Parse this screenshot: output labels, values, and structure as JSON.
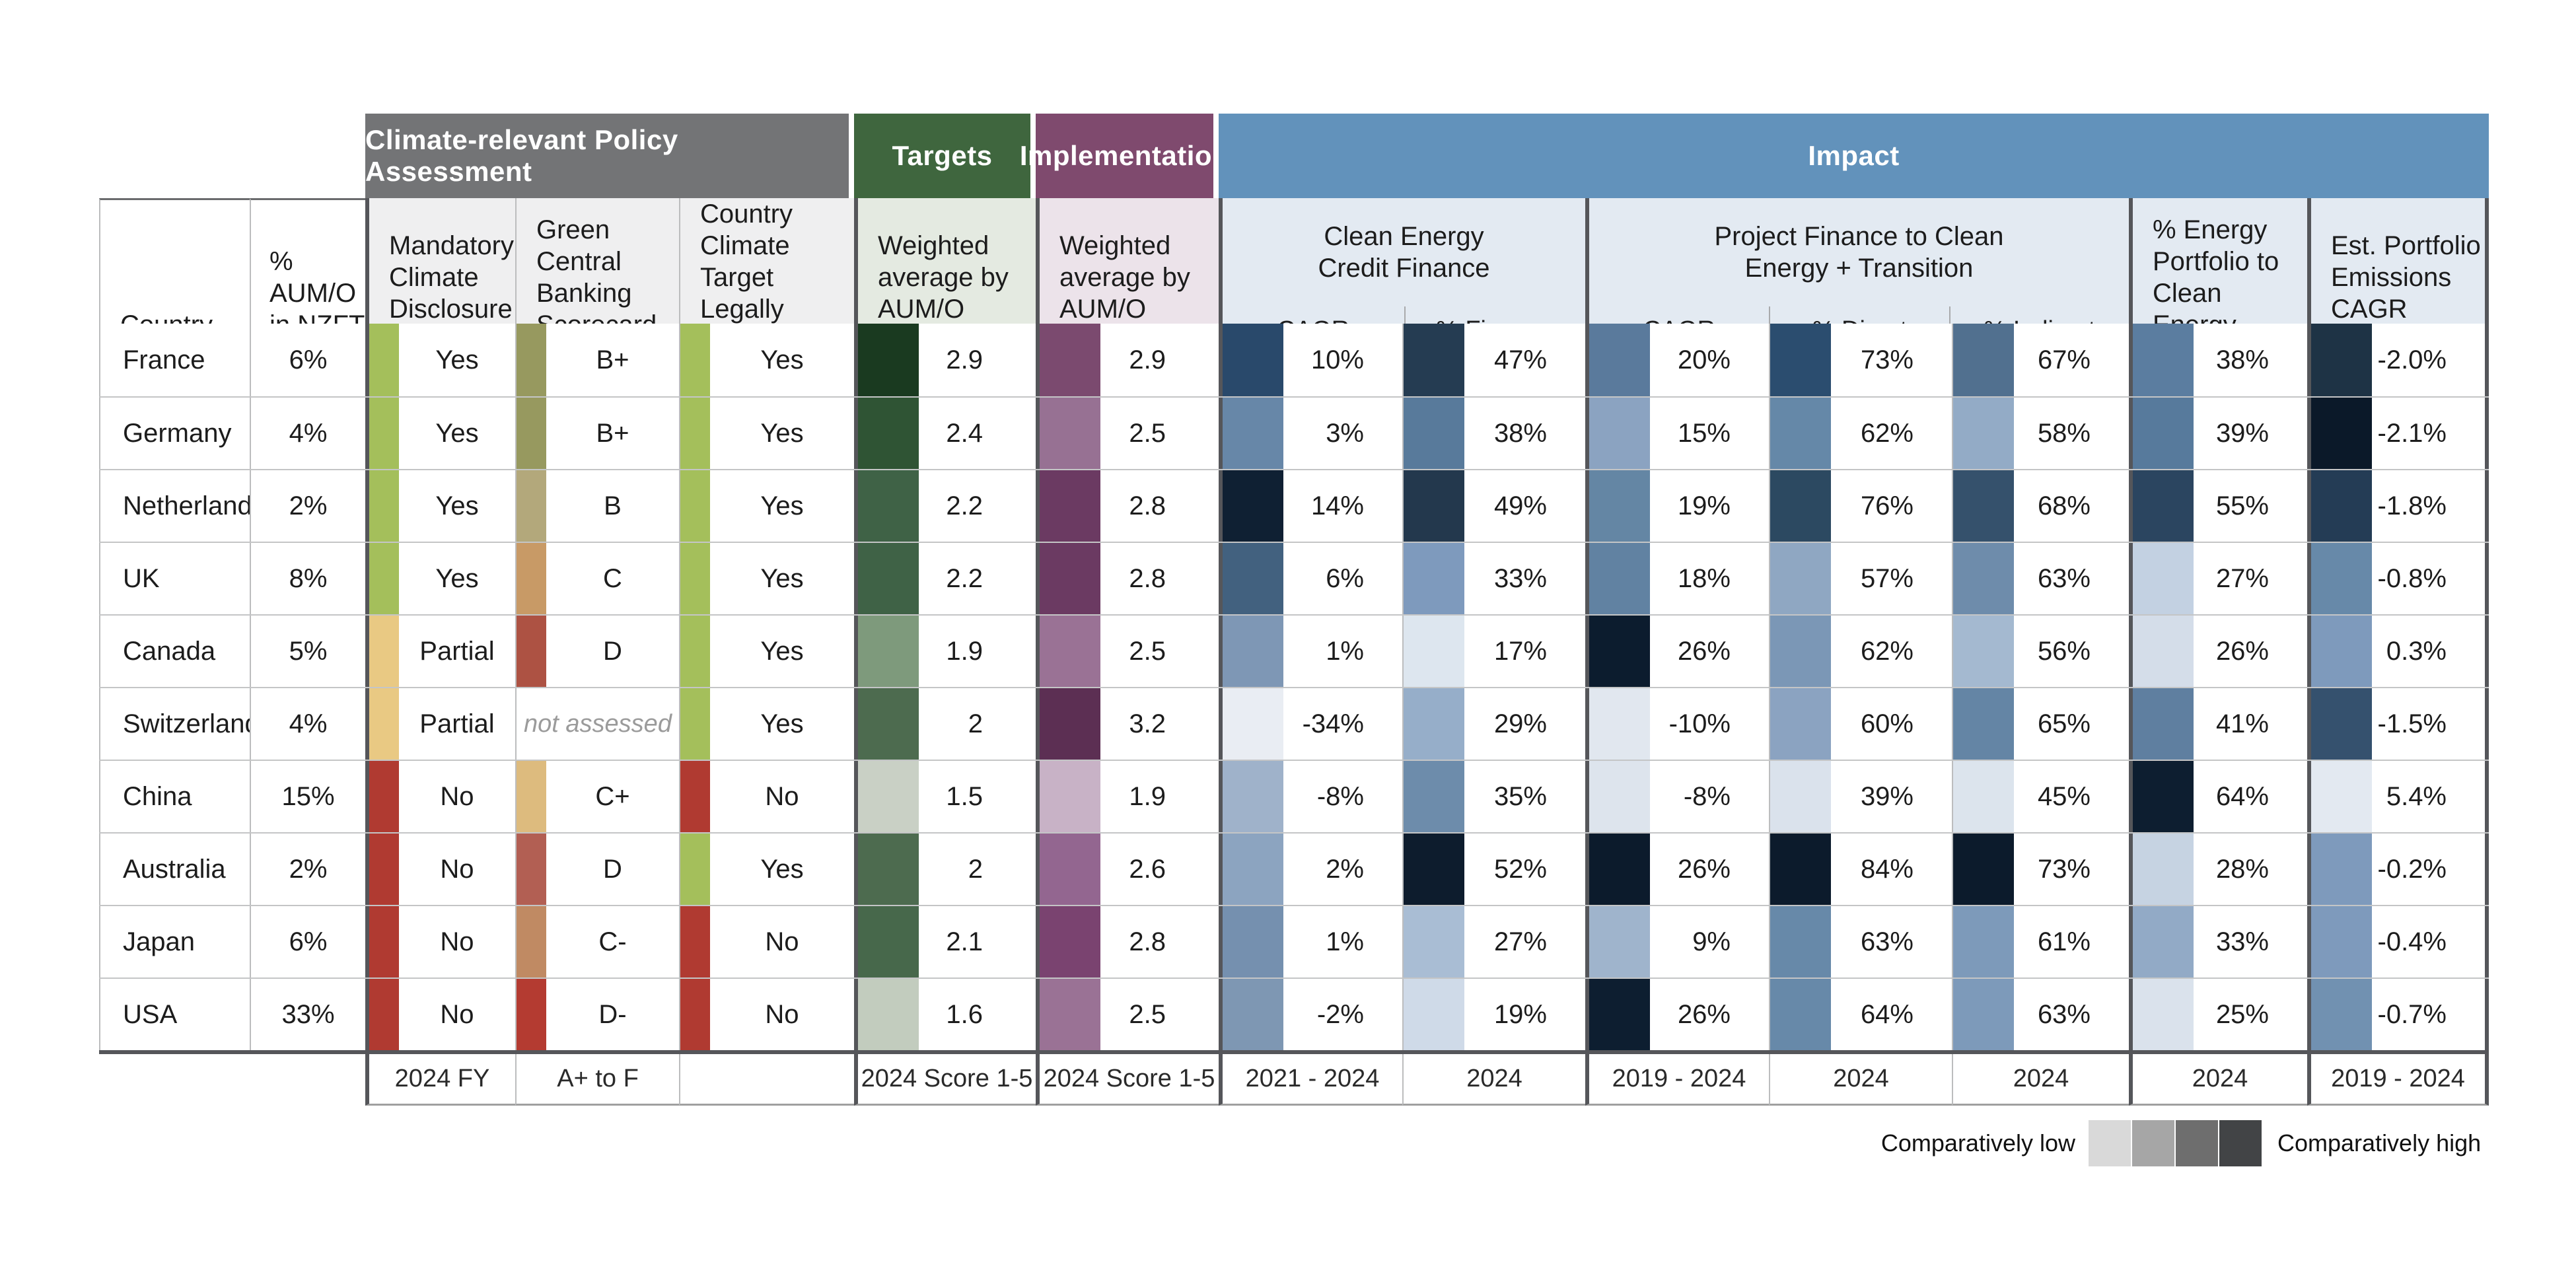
{
  "groups": {
    "policy": {
      "label": "Climate-relevant Policy Assessment",
      "color": "#737476",
      "tint": "#efeff0"
    },
    "targets": {
      "label": "Targets",
      "color": "#3f663e",
      "tint": "#e4eae1"
    },
    "implementation": {
      "label": "Implementation",
      "color": "#7f4a6e",
      "tint": "#ece3ea"
    },
    "impact": {
      "label": "Impact",
      "color": "#6292bb",
      "tint": "#e3eaf2"
    }
  },
  "columns": {
    "country": "Country",
    "aum": "%\nAUM/O\nin NZFT",
    "mandatory": "Mandatory\nClimate\nDisclosure",
    "scorecard": "Green Central\nBanking\nScorecard",
    "binding": "Country\nClimate Target\nLegally Binding",
    "targets": "Weighted\naverage by\nAUM/O",
    "implementation": "Weighted\naverage by\nAUM/O",
    "ce_group": "Clean Energy\nCredit Finance",
    "ce_sub1": "CAGR",
    "ce_sub2": "% Finance",
    "pf_group": "Project Finance to Clean\nEnergy + Transition",
    "pf_sub1": "CAGR",
    "pf_sub2": "% Direct",
    "pf_sub3": "% Indirect",
    "energy": "% Energy\nPortfolio to\nClean Energy",
    "emissions": "Est. Portfolio\nEmissions\nCAGR"
  },
  "footer": [
    "2024 FY",
    "A+ to F",
    "",
    "2024 Score 1-5",
    "2024 Score 1-5",
    "2021 - 2024",
    "2024",
    "2019 - 2024",
    "2024",
    "2024",
    "2024",
    "2019 - 2024"
  ],
  "legend": {
    "low": "Comparatively low",
    "high": "Comparatively high",
    "swatches": [
      "#d9d9d9",
      "#a6a6a6",
      "#6e6e6e",
      "#424446"
    ]
  },
  "rows": [
    {
      "country": "France",
      "aum": "6%",
      "mandatory": {
        "v": "Yes",
        "c": "#a4bf5b"
      },
      "scorecard": {
        "v": "B+",
        "c": "#97995f"
      },
      "binding": {
        "v": "Yes",
        "c": "#a4bf5b"
      },
      "targets": {
        "v": "2.9",
        "c": "#1a3a20"
      },
      "impl": {
        "v": "2.9",
        "c": "#7b4a6f"
      },
      "ce_cagr": {
        "v": "10%",
        "c": "#29496b"
      },
      "ce_fin": {
        "v": "47%",
        "c": "#253c52"
      },
      "pf_cagr": {
        "v": "20%",
        "c": "#5a7a9c"
      },
      "pf_dir": {
        "v": "73%",
        "c": "#2b4d6f"
      },
      "pf_ind": {
        "v": "67%",
        "c": "#51708f"
      },
      "energy": {
        "v": "38%",
        "c": "#5b7da0"
      },
      "emis": {
        "v": "-2.0%",
        "c": "#1e3345"
      }
    },
    {
      "country": "Germany",
      "aum": "4%",
      "mandatory": {
        "v": "Yes",
        "c": "#a4bf5b"
      },
      "scorecard": {
        "v": "B+",
        "c": "#97995f"
      },
      "binding": {
        "v": "Yes",
        "c": "#a4bf5b"
      },
      "targets": {
        "v": "2.4",
        "c": "#2f5434"
      },
      "impl": {
        "v": "2.5",
        "c": "#977193"
      },
      "ce_cagr": {
        "v": "3%",
        "c": "#6787a8"
      },
      "ce_fin": {
        "v": "38%",
        "c": "#587a9b"
      },
      "pf_cagr": {
        "v": "15%",
        "c": "#8ba3c1"
      },
      "pf_dir": {
        "v": "62%",
        "c": "#6588a8"
      },
      "pf_ind": {
        "v": "58%",
        "c": "#93abc6"
      },
      "energy": {
        "v": "39%",
        "c": "#577a9c"
      },
      "emis": {
        "v": "-2.1%",
        "c": "#0b1929"
      }
    },
    {
      "country": "Netherlands",
      "aum": "2%",
      "mandatory": {
        "v": "Yes",
        "c": "#a4bf5b"
      },
      "scorecard": {
        "v": "B",
        "c": "#b3a87b"
      },
      "binding": {
        "v": "Yes",
        "c": "#a4bf5b"
      },
      "targets": {
        "v": "2.2",
        "c": "#3f6246"
      },
      "impl": {
        "v": "2.8",
        "c": "#6b3a62"
      },
      "ce_cagr": {
        "v": "14%",
        "c": "#0f2033"
      },
      "ce_fin": {
        "v": "49%",
        "c": "#23384d"
      },
      "pf_cagr": {
        "v": "19%",
        "c": "#6486a4"
      },
      "pf_dir": {
        "v": "76%",
        "c": "#2c4961"
      },
      "pf_ind": {
        "v": "68%",
        "c": "#35516c"
      },
      "energy": {
        "v": "55%",
        "c": "#2b4560"
      },
      "emis": {
        "v": "-1.8%",
        "c": "#243c55"
      }
    },
    {
      "country": "UK",
      "aum": "8%",
      "mandatory": {
        "v": "Yes",
        "c": "#a4bf5b"
      },
      "scorecard": {
        "v": "C",
        "c": "#c89a66"
      },
      "binding": {
        "v": "Yes",
        "c": "#a4bf5b"
      },
      "targets": {
        "v": "2.2",
        "c": "#3f6246"
      },
      "impl": {
        "v": "2.8",
        "c": "#6b3a62"
      },
      "ce_cagr": {
        "v": "6%",
        "c": "#42617f"
      },
      "ce_fin": {
        "v": "33%",
        "c": "#7e9abd"
      },
      "pf_cagr": {
        "v": "18%",
        "c": "#6182a2"
      },
      "pf_dir": {
        "v": "57%",
        "c": "#8fa7c2"
      },
      "pf_ind": {
        "v": "63%",
        "c": "#6e8cab"
      },
      "energy": {
        "v": "27%",
        "c": "#c3d1e2"
      },
      "emis": {
        "v": "-0.8%",
        "c": "#6789a9"
      }
    },
    {
      "country": "Canada",
      "aum": "5%",
      "mandatory": {
        "v": "Partial",
        "c": "#e9c983"
      },
      "scorecard": {
        "v": "D",
        "c": "#ad5243"
      },
      "binding": {
        "v": "Yes",
        "c": "#a4bf5b"
      },
      "targets": {
        "v": "1.9",
        "c": "#7e9a7c"
      },
      "impl": {
        "v": "2.5",
        "c": "#9a7295"
      },
      "ce_cagr": {
        "v": "1%",
        "c": "#7e97b5"
      },
      "ce_fin": {
        "v": "17%",
        "c": "#dde6ef"
      },
      "pf_cagr": {
        "v": "26%",
        "c": "#0c1c2e"
      },
      "pf_dir": {
        "v": "62%",
        "c": "#7b97b6"
      },
      "pf_ind": {
        "v": "56%",
        "c": "#a4b9d0"
      },
      "energy": {
        "v": "26%",
        "c": "#d4dde9"
      },
      "emis": {
        "v": "0.3%",
        "c": "#7e9abc"
      }
    },
    {
      "country": "Switzerland",
      "aum": "4%",
      "mandatory": {
        "v": "Partial",
        "c": "#e9c983"
      },
      "scorecard": {
        "v": "not assessed",
        "c": null,
        "na": true
      },
      "binding": {
        "v": "Yes",
        "c": "#a4bf5b"
      },
      "targets": {
        "v": "2",
        "c": "#4d6b4f"
      },
      "impl": {
        "v": "3.2",
        "c": "#5c2f53"
      },
      "ce_cagr": {
        "v": "-34%",
        "c": "#e9edf3"
      },
      "ce_fin": {
        "v": "29%",
        "c": "#96aec9"
      },
      "pf_cagr": {
        "v": "-10%",
        "c": "#e1e7ef"
      },
      "pf_dir": {
        "v": "60%",
        "c": "#8ba3c1"
      },
      "pf_ind": {
        "v": "65%",
        "c": "#6485a5"
      },
      "energy": {
        "v": "41%",
        "c": "#5f7fa0"
      },
      "emis": {
        "v": "-1.5%",
        "c": "#35516e"
      }
    },
    {
      "country": "China",
      "aum": "15%",
      "mandatory": {
        "v": "No",
        "c": "#b03a31"
      },
      "scorecard": {
        "v": "C+",
        "c": "#ddbb7e"
      },
      "binding": {
        "v": "No",
        "c": "#b03a31"
      },
      "targets": {
        "v": "1.5",
        "c": "#c9d0c5"
      },
      "impl": {
        "v": "1.9",
        "c": "#c8b2c6"
      },
      "ce_cagr": {
        "v": "-8%",
        "c": "#9fb2ca"
      },
      "ce_fin": {
        "v": "35%",
        "c": "#6d8cab"
      },
      "pf_cagr": {
        "v": "-8%",
        "c": "#dde4ed"
      },
      "pf_dir": {
        "v": "39%",
        "c": "#dae2ec"
      },
      "pf_ind": {
        "v": "45%",
        "c": "#dce4ed"
      },
      "energy": {
        "v": "64%",
        "c": "#0d1e30"
      },
      "emis": {
        "v": "5.4%",
        "c": "#e3e9f1"
      }
    },
    {
      "country": "Australia",
      "aum": "2%",
      "mandatory": {
        "v": "No",
        "c": "#b03a31"
      },
      "scorecard": {
        "v": "D",
        "c": "#b25f53"
      },
      "binding": {
        "v": "Yes",
        "c": "#a4bf5b"
      },
      "targets": {
        "v": "2",
        "c": "#4d6b4f"
      },
      "impl": {
        "v": "2.6",
        "c": "#936690"
      },
      "ce_cagr": {
        "v": "2%",
        "c": "#8ca4c0"
      },
      "ce_fin": {
        "v": "52%",
        "c": "#0d1c2d"
      },
      "pf_cagr": {
        "v": "26%",
        "c": "#0c1b2c"
      },
      "pf_dir": {
        "v": "84%",
        "c": "#0c1b2c"
      },
      "pf_ind": {
        "v": "73%",
        "c": "#0c1b2c"
      },
      "energy": {
        "v": "28%",
        "c": "#c6d3e2"
      },
      "emis": {
        "v": "-0.2%",
        "c": "#7e9abc"
      }
    },
    {
      "country": "Japan",
      "aum": "6%",
      "mandatory": {
        "v": "No",
        "c": "#b03a31"
      },
      "scorecard": {
        "v": "C-",
        "c": "#c08a63"
      },
      "binding": {
        "v": "No",
        "c": "#b03a31"
      },
      "targets": {
        "v": "2.1",
        "c": "#47684b"
      },
      "impl": {
        "v": "2.8",
        "c": "#7a4370"
      },
      "ce_cagr": {
        "v": "1%",
        "c": "#7590af"
      },
      "ce_fin": {
        "v": "27%",
        "c": "#a9bdd4"
      },
      "pf_cagr": {
        "v": "9%",
        "c": "#9fb4cc"
      },
      "pf_dir": {
        "v": "63%",
        "c": "#6789a9"
      },
      "pf_ind": {
        "v": "61%",
        "c": "#7d9aba"
      },
      "energy": {
        "v": "33%",
        "c": "#92aac6"
      },
      "emis": {
        "v": "-0.4%",
        "c": "#7e9abc"
      }
    },
    {
      "country": "USA",
      "aum": "33%",
      "mandatory": {
        "v": "No",
        "c": "#b03a31"
      },
      "scorecard": {
        "v": "D-",
        "c": "#b43b31"
      },
      "binding": {
        "v": "No",
        "c": "#b03a31"
      },
      "targets": {
        "v": "1.6",
        "c": "#c2ccbe"
      },
      "impl": {
        "v": "2.5",
        "c": "#9a7295"
      },
      "ce_cagr": {
        "v": "-2%",
        "c": "#7e97b3"
      },
      "ce_fin": {
        "v": "19%",
        "c": "#cfdae8"
      },
      "pf_cagr": {
        "v": "26%",
        "c": "#0d1e30"
      },
      "pf_dir": {
        "v": "64%",
        "c": "#6789a9"
      },
      "pf_ind": {
        "v": "63%",
        "c": "#7d9aba"
      },
      "energy": {
        "v": "25%",
        "c": "#dae2ec"
      },
      "emis": {
        "v": "-0.7%",
        "c": "#7191b1"
      }
    }
  ],
  "chart_data": {
    "type": "table",
    "title": "",
    "categories": [
      "France",
      "Germany",
      "Netherlands",
      "UK",
      "Canada",
      "Switzerland",
      "China",
      "Australia",
      "Japan",
      "USA"
    ],
    "series": [
      {
        "name": "% AUM/O in NZFT",
        "values": [
          "6%",
          "4%",
          "2%",
          "8%",
          "5%",
          "4%",
          "15%",
          "2%",
          "6%",
          "33%"
        ]
      },
      {
        "name": "Mandatory Climate Disclosure (2024 FY)",
        "values": [
          "Yes",
          "Yes",
          "Yes",
          "Yes",
          "Partial",
          "Partial",
          "No",
          "No",
          "No",
          "No"
        ]
      },
      {
        "name": "Green Central Banking Scorecard (A+ to F)",
        "values": [
          "B+",
          "B+",
          "B",
          "C",
          "D",
          "not assessed",
          "C+",
          "D",
          "C-",
          "D-"
        ]
      },
      {
        "name": "Country Climate Target Legally Binding",
        "values": [
          "Yes",
          "Yes",
          "Yes",
          "Yes",
          "Yes",
          "Yes",
          "No",
          "Yes",
          "No",
          "No"
        ]
      },
      {
        "name": "Targets weighted average by AUM/O (2024 Score 1-5)",
        "values": [
          2.9,
          2.4,
          2.2,
          2.2,
          1.9,
          2,
          1.5,
          2,
          2.1,
          1.6
        ]
      },
      {
        "name": "Implementation weighted average by AUM/O (2024 Score 1-5)",
        "values": [
          2.9,
          2.5,
          2.8,
          2.8,
          2.5,
          3.2,
          1.9,
          2.6,
          2.8,
          2.5
        ]
      },
      {
        "name": "Clean Energy Credit Finance CAGR (2021 - 2024)",
        "values": [
          "10%",
          "3%",
          "14%",
          "6%",
          "1%",
          "-34%",
          "-8%",
          "2%",
          "1%",
          "-2%"
        ]
      },
      {
        "name": "Clean Energy Credit Finance % Finance (2024)",
        "values": [
          "47%",
          "38%",
          "49%",
          "33%",
          "17%",
          "29%",
          "35%",
          "52%",
          "27%",
          "19%"
        ]
      },
      {
        "name": "Project Finance to Clean Energy + Transition CAGR (2019 - 2024)",
        "values": [
          "20%",
          "15%",
          "19%",
          "18%",
          "26%",
          "-10%",
          "-8%",
          "26%",
          "9%",
          "26%"
        ]
      },
      {
        "name": "Project Finance % Direct (2024)",
        "values": [
          "73%",
          "62%",
          "76%",
          "57%",
          "62%",
          "60%",
          "39%",
          "84%",
          "63%",
          "64%"
        ]
      },
      {
        "name": "Project Finance % Indirect (2024)",
        "values": [
          "67%",
          "58%",
          "68%",
          "63%",
          "56%",
          "65%",
          "45%",
          "73%",
          "61%",
          "63%"
        ]
      },
      {
        "name": "% Energy Portfolio to Clean Energy (2024)",
        "values": [
          "38%",
          "39%",
          "55%",
          "27%",
          "26%",
          "41%",
          "64%",
          "28%",
          "33%",
          "25%"
        ]
      },
      {
        "name": "Est. Portfolio Emissions CAGR (2019 - 2024)",
        "values": [
          "-2.0%",
          "-2.1%",
          "-1.8%",
          "-0.8%",
          "0.3%",
          "-1.5%",
          "5.4%",
          "-0.2%",
          "-0.4%",
          "-0.7%"
        ]
      }
    ],
    "legend_position": "bottom-right",
    "legend": [
      "Comparatively low",
      "Comparatively high"
    ]
  }
}
